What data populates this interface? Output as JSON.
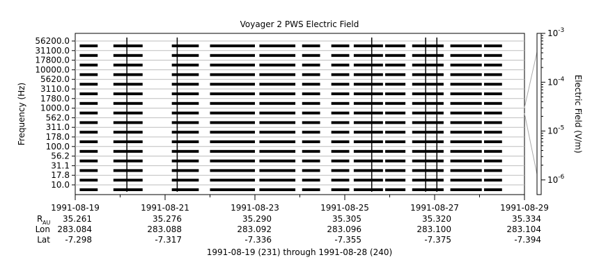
{
  "chart_data": {
    "type": "line",
    "title": "Voyager 2 PWS Electric Field",
    "ylabel": "Frequency (Hz)",
    "y2label": "Electric Field (V/m)",
    "xlabel": "1991-08-19 (231) through 1991-08-28 (240)",
    "channels": [
      "56200.0",
      "31100.0",
      "17800.0",
      "10000.0",
      "5620.0",
      "3110.0",
      "1780.0",
      "1000.0",
      "562.0",
      "311.0",
      "178.0",
      "100.0",
      "56.2",
      "31.1",
      "17.8",
      "10.0"
    ],
    "x_range": [
      "1991-08-19",
      "1991-08-29"
    ],
    "x_ticks": [
      "1991-08-19",
      "1991-08-21",
      "1991-08-23",
      "1991-08-25",
      "1991-08-27",
      "1991-08-29"
    ],
    "right_scale": {
      "type": "log",
      "range": [
        5e-07,
        0.001
      ],
      "tick_labels": [
        {
          "mantissa": "10",
          "exp": "-3"
        },
        {
          "mantissa": "10",
          "exp": "-4"
        },
        {
          "mantissa": "10",
          "exp": "-5"
        },
        {
          "mantissa": "10",
          "exp": "-6"
        }
      ]
    },
    "data_segments_days": [
      [
        0.1,
        0.5
      ],
      [
        0.85,
        1.5
      ],
      [
        2.15,
        2.75
      ],
      [
        3.0,
        4.0
      ],
      [
        4.1,
        4.9
      ],
      [
        5.05,
        5.45
      ],
      [
        5.7,
        6.1
      ],
      [
        6.2,
        6.85
      ],
      [
        6.9,
        7.35
      ],
      [
        7.5,
        8.2
      ],
      [
        8.35,
        9.05
      ],
      [
        9.1,
        9.5
      ]
    ],
    "bursts_days": [
      1.15,
      2.27,
      6.6,
      7.8,
      8.05
    ],
    "ephemeris": {
      "labels": {
        "r": "R",
        "r_sub": "AU",
        "lon": "Lon",
        "lat": "Lat"
      },
      "r_au": [
        "35.261",
        "35.276",
        "35.290",
        "35.305",
        "35.320",
        "35.334"
      ],
      "lon": [
        "283.084",
        "283.088",
        "283.092",
        "283.096",
        "283.100",
        "283.104"
      ],
      "lat": [
        "-7.298",
        "-7.317",
        "-7.336",
        "-7.355",
        "-7.375",
        "-7.394"
      ]
    }
  }
}
